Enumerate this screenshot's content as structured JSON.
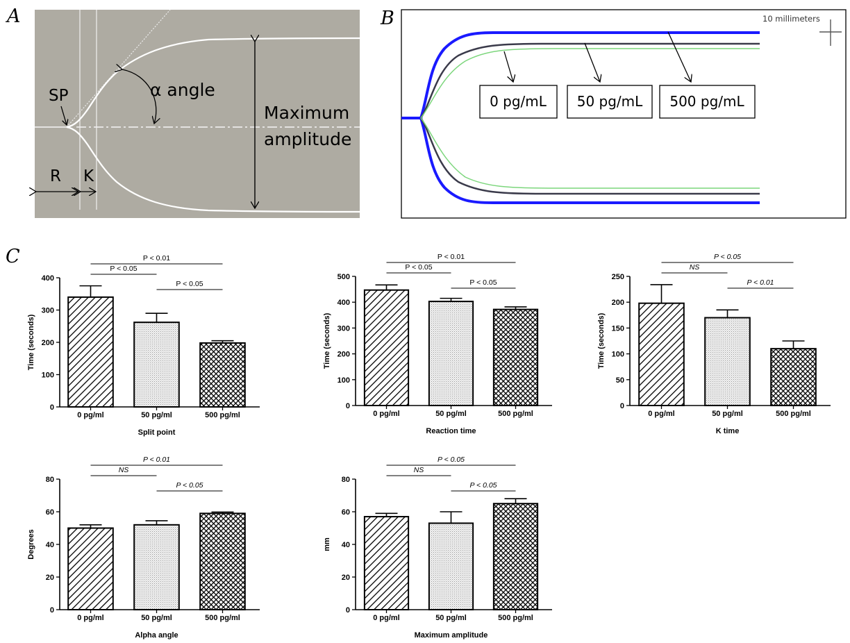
{
  "panels": {
    "A": {
      "letter": "A",
      "labels": {
        "sp": "SP",
        "alpha": "α angle",
        "max1": "Maximum",
        "max2": "amplitude",
        "r": "R",
        "k": "K"
      }
    },
    "B": {
      "letter": "B",
      "scale_label": "10 millimeters",
      "legend": [
        "0 pg/mL",
        "50 pg/mL",
        "500 pg/mL"
      ],
      "colors": {
        "0 pg/mL": "#1a1aff",
        "50 pg/mL": "#3a3a4a",
        "500 pg/mL": "#7cd67c"
      }
    },
    "C": {
      "letter": "C"
    }
  },
  "chart_data": [
    {
      "type": "bar",
      "title": "Split point",
      "ylabel": "Time (seconds)",
      "categories": [
        "0 pg/ml",
        "50 pg/ml",
        "500 pg/ml"
      ],
      "values": [
        340,
        262,
        198
      ],
      "errors": [
        35,
        28,
        7
      ],
      "ylim": [
        0,
        400
      ],
      "yticks": [
        0,
        100,
        200,
        300,
        400
      ],
      "significance": [
        {
          "from": 0,
          "to": 2,
          "label": "P < 0.01",
          "italic": false
        },
        {
          "from": 0,
          "to": 1,
          "label": "P < 0.05",
          "italic": false
        },
        {
          "from": 1,
          "to": 2,
          "label": "P < 0.05",
          "italic": false
        }
      ]
    },
    {
      "type": "bar",
      "title": "Reaction time",
      "ylabel": "Time (seconds)",
      "categories": [
        "0 pg/ml",
        "50 pg/ml",
        "500 pg/ml"
      ],
      "values": [
        447,
        403,
        372
      ],
      "errors": [
        20,
        12,
        10
      ],
      "ylim": [
        0,
        500
      ],
      "yticks": [
        0,
        100,
        200,
        300,
        400,
        500
      ],
      "significance": [
        {
          "from": 0,
          "to": 2,
          "label": "P < 0.01",
          "italic": false
        },
        {
          "from": 0,
          "to": 1,
          "label": "P < 0.05",
          "italic": false
        },
        {
          "from": 1,
          "to": 2,
          "label": "P < 0.05",
          "italic": false
        }
      ]
    },
    {
      "type": "bar",
      "title": "K time",
      "ylabel": "Time (seconds)",
      "categories": [
        "0 pg/ml",
        "50 pg/ml",
        "500 pg/ml"
      ],
      "values": [
        198,
        170,
        110
      ],
      "errors": [
        36,
        15,
        15
      ],
      "ylim": [
        0,
        250
      ],
      "yticks": [
        0,
        50,
        100,
        150,
        200,
        250
      ],
      "significance": [
        {
          "from": 0,
          "to": 2,
          "label": "P < 0.05",
          "italic": true
        },
        {
          "from": 0,
          "to": 1,
          "label": "NS",
          "italic": true
        },
        {
          "from": 1,
          "to": 2,
          "label": "P < 0.01",
          "italic": true
        }
      ]
    },
    {
      "type": "bar",
      "title": "Alpha angle",
      "ylabel": "Degrees",
      "categories": [
        "0 pg/ml",
        "50 pg/ml",
        "500 pg/ml"
      ],
      "values": [
        50,
        52,
        59
      ],
      "errors": [
        2,
        2.5,
        0.8
      ],
      "ylim": [
        0,
        80
      ],
      "yticks": [
        0,
        20,
        40,
        60,
        80
      ],
      "significance": [
        {
          "from": 0,
          "to": 2,
          "label": "P < 0.01",
          "italic": true
        },
        {
          "from": 0,
          "to": 1,
          "label": "NS",
          "italic": true
        },
        {
          "from": 1,
          "to": 2,
          "label": "P < 0.05",
          "italic": true
        }
      ]
    },
    {
      "type": "bar",
      "title": "Maximum amplitude",
      "ylabel": "mm",
      "categories": [
        "0 pg/ml",
        "50 pg/ml",
        "500 pg/ml"
      ],
      "values": [
        57,
        53,
        65
      ],
      "errors": [
        2,
        7,
        3
      ],
      "ylim": [
        0,
        80
      ],
      "yticks": [
        0,
        20,
        40,
        60,
        80
      ],
      "significance": [
        {
          "from": 0,
          "to": 2,
          "label": "P < 0.05",
          "italic": true
        },
        {
          "from": 0,
          "to": 1,
          "label": "NS",
          "italic": true
        },
        {
          "from": 1,
          "to": 2,
          "label": "P < 0.05",
          "italic": true
        }
      ]
    }
  ]
}
